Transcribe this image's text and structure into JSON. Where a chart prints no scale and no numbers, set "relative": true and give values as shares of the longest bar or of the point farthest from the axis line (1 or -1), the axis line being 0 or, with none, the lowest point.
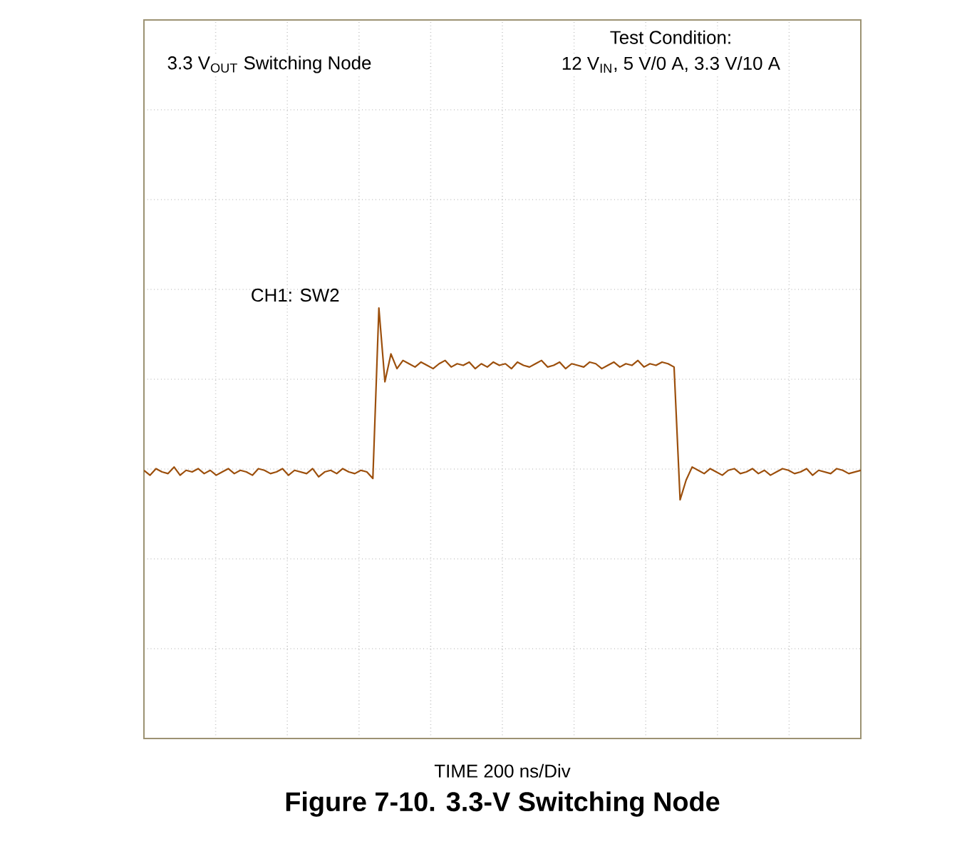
{
  "chart_data": {
    "type": "line",
    "relative": true,
    "grid": true,
    "title": "Figure 7-10. 3.3-V Switching Node",
    "annotations": [
      "3.3 V$_{OUT}$ Switching Node",
      "Test Condition:",
      "12 V$_{IN}$, 5 V/0 A, 3.3 V/10 A",
      "TIME 200 ns/Div"
    ],
    "categories": [
      null,
      null,
      null,
      null,
      null,
      null,
      null,
      null,
      null,
      null,
      null,
      null,
      null,
      null,
      null,
      null,
      null,
      null,
      null,
      null,
      null,
      null,
      null,
      null,
      null,
      null,
      null,
      null,
      null,
      null,
      null,
      null,
      null,
      null,
      null,
      null,
      null,
      null,
      null,
      null,
      null,
      null,
      null,
      null,
      null,
      null,
      null,
      null,
      null,
      null,
      null,
      null,
      null,
      null,
      null,
      null,
      null,
      null,
      null,
      null,
      null,
      null,
      null,
      null,
      null,
      null,
      null,
      null,
      null,
      null,
      null,
      null,
      null,
      null,
      null,
      null,
      null,
      null,
      null,
      null,
      null,
      null,
      null,
      null,
      null,
      null,
      null,
      null,
      null,
      null,
      null,
      null,
      null,
      null,
      null,
      null,
      null,
      null,
      null,
      null,
      null,
      null,
      null,
      null,
      null,
      null,
      null,
      null,
      null,
      null,
      null,
      null,
      null,
      null,
      null,
      null,
      null,
      null,
      null,
      null
    ],
    "series": [
      {
        "name": "CH1: SW2",
        "color": "#9c4f0c",
        "values": [
          0.01,
          -0.02,
          0.02,
          0.0,
          -0.01,
          0.03,
          -0.02,
          0.01,
          0.0,
          0.02,
          -0.01,
          0.01,
          -0.02,
          0.0,
          0.02,
          -0.01,
          0.01,
          0.0,
          -0.02,
          0.02,
          0.01,
          -0.01,
          0.0,
          0.02,
          -0.02,
          0.01,
          0.0,
          -0.01,
          0.02,
          -0.03,
          0.0,
          0.01,
          -0.01,
          0.02,
          0.0,
          -0.01,
          0.01,
          0.0,
          -0.04,
          1.0,
          0.55,
          0.72,
          0.63,
          0.68,
          0.66,
          0.64,
          0.67,
          0.65,
          0.63,
          0.66,
          0.68,
          0.64,
          0.66,
          0.65,
          0.67,
          0.63,
          0.66,
          0.64,
          0.67,
          0.65,
          0.66,
          0.63,
          0.67,
          0.65,
          0.64,
          0.66,
          0.68,
          0.64,
          0.65,
          0.67,
          0.63,
          0.66,
          0.65,
          0.64,
          0.67,
          0.66,
          0.63,
          0.65,
          0.67,
          0.64,
          0.66,
          0.65,
          0.68,
          0.64,
          0.66,
          0.65,
          0.67,
          0.66,
          0.64,
          -0.17,
          -0.05,
          0.03,
          0.01,
          -0.01,
          0.02,
          0.0,
          -0.02,
          0.01,
          0.02,
          -0.01,
          0.0,
          0.02,
          -0.01,
          0.01,
          -0.02,
          0.0,
          0.02,
          0.01,
          -0.01,
          0.0,
          0.02,
          -0.02,
          0.01,
          0.0,
          -0.01,
          0.02,
          0.01,
          -0.01,
          0.0,
          0.01
        ]
      }
    ]
  }
}
